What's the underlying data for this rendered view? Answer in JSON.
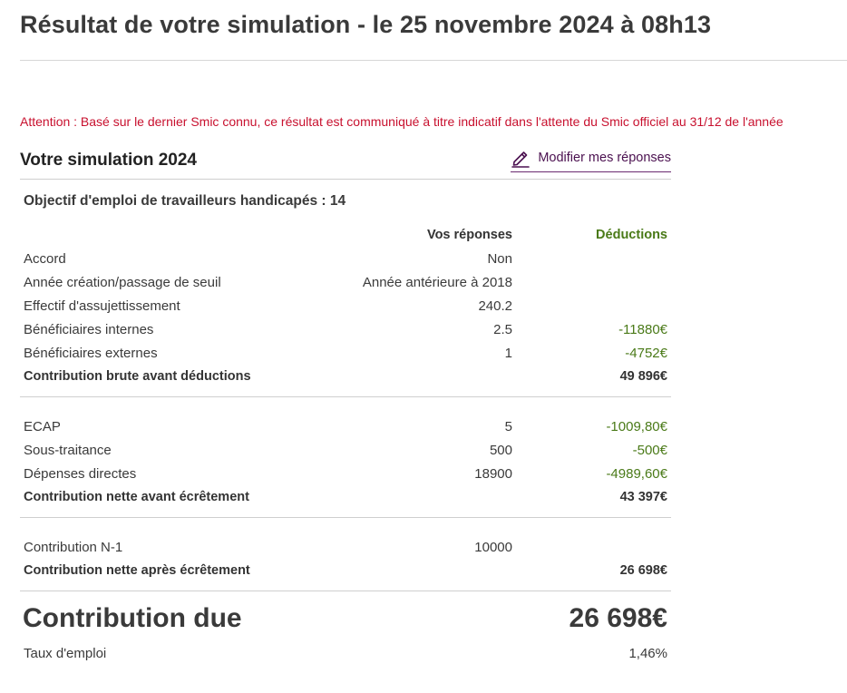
{
  "page": {
    "title": "Résultat de votre simulation - le 25 novembre 2024 à 08h13",
    "warning": "Attention : Basé sur le dernier Smic connu, ce résultat est communiqué à titre indicatif dans l'attente du Smic officiel au 31/12 de l'année"
  },
  "simulation": {
    "title": "Votre simulation 2024",
    "edit_label": "Modifier mes réponses",
    "edit_icon": "pencil-icon",
    "accent_color": "#4b1150",
    "objective": "Objectif d'emploi de travailleurs handicapés : 14"
  },
  "table": {
    "headers": {
      "answers": "Vos réponses",
      "deductions": "Déductions"
    },
    "section1": [
      {
        "label": "Accord",
        "value": "Non",
        "deduction": ""
      },
      {
        "label": "Année création/passage de seuil",
        "value": "Année antérieure à 2018",
        "deduction": ""
      },
      {
        "label": "Effectif d'assujettissement",
        "value": "240.2",
        "deduction": ""
      },
      {
        "label": "Bénéficiaires internes",
        "value": "2.5",
        "deduction": "-11880€"
      },
      {
        "label": "Bénéficiaires externes",
        "value": "1",
        "deduction": "-4752€"
      }
    ],
    "subtotal1": {
      "label": "Contribution brute avant déductions",
      "amount": "49 896€"
    },
    "section2": [
      {
        "label": "ECAP",
        "value": "5",
        "deduction": "-1009,80€"
      },
      {
        "label": "Sous-traitance",
        "value": "500",
        "deduction": "-500€"
      },
      {
        "label": "Dépenses directes",
        "value": "18900",
        "deduction": "-4989,60€"
      }
    ],
    "subtotal2": {
      "label": "Contribution nette avant écrêtement",
      "amount": "43 397€"
    },
    "section3": [
      {
        "label": "Contribution N-1",
        "value": "10000",
        "deduction": ""
      }
    ],
    "subtotal3": {
      "label": "Contribution nette après écrêtement",
      "amount": "26 698€"
    }
  },
  "result": {
    "due_label": "Contribution due",
    "due_value": "26 698€",
    "rate_label": "Taux d'emploi",
    "rate_value": "1,46%"
  },
  "colors": {
    "warning": "#c8102e",
    "deduction": "#4a7a18",
    "link": "#4b1150"
  }
}
